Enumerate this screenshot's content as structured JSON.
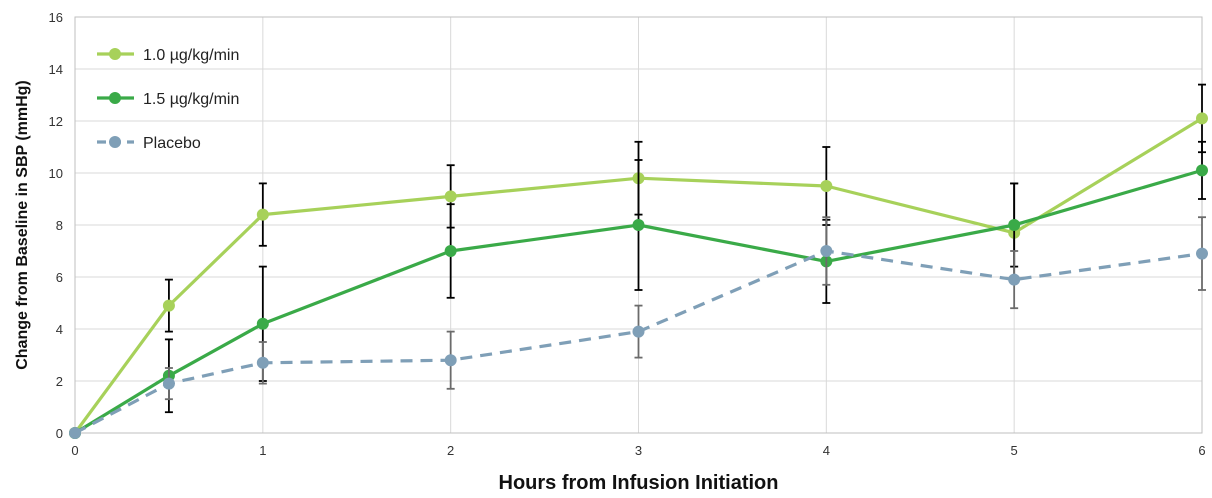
{
  "chart_data": {
    "type": "line",
    "xlabel": "Hours from Infusion Initiation",
    "ylabel": "Change from Baseline in SBP (mmHg)",
    "xlim": [
      0,
      6
    ],
    "ylim": [
      0,
      16
    ],
    "xticks": [
      "0",
      "1",
      "2",
      "3",
      "4",
      "5",
      "6"
    ],
    "yticks": [
      "0",
      "2",
      "4",
      "6",
      "8",
      "10",
      "12",
      "14",
      "16"
    ],
    "grid": true,
    "legend_position": "top-left",
    "series": [
      {
        "name": "1.0 µg/kg/min",
        "color": "#a7d15a",
        "style": "solid",
        "x": [
          0,
          0.5,
          1,
          2,
          3,
          4,
          5,
          6
        ],
        "y": [
          0,
          4.9,
          8.4,
          9.1,
          9.8,
          9.5,
          7.7,
          12.1
        ],
        "err": [
          0,
          1.0,
          1.2,
          1.2,
          1.4,
          1.5,
          1.9,
          1.3
        ]
      },
      {
        "name": "1.5 µg/kg/min",
        "color": "#3aaa48",
        "style": "solid",
        "x": [
          0,
          0.5,
          1,
          2,
          3,
          4,
          5,
          6
        ],
        "y": [
          0,
          2.2,
          4.2,
          7.0,
          8.0,
          6.6,
          8.0,
          10.1
        ],
        "err": [
          0,
          1.4,
          2.2,
          1.8,
          2.5,
          1.6,
          1.6,
          1.1
        ]
      },
      {
        "name": "Placebo",
        "color": "#7f9fb7",
        "style": "dashed",
        "x": [
          0,
          0.5,
          1,
          2,
          3,
          4,
          5,
          6
        ],
        "y": [
          0,
          1.9,
          2.7,
          2.8,
          3.9,
          7.0,
          5.9,
          6.9
        ],
        "err": [
          0,
          0.6,
          0.8,
          1.1,
          1.0,
          1.3,
          1.1,
          1.4
        ]
      }
    ]
  }
}
